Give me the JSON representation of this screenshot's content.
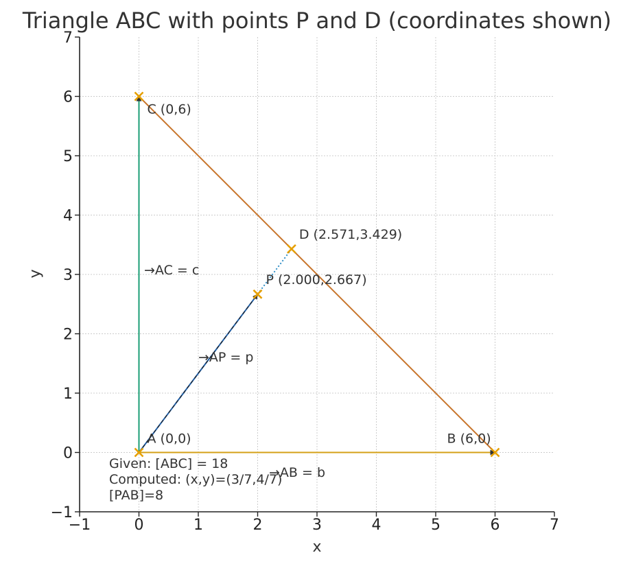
{
  "chart_data": {
    "type": "scatter",
    "title": "Triangle ABC with points P and D (coordinates shown)",
    "xlabel": "x",
    "ylabel": "y",
    "xlim": [
      -1,
      7
    ],
    "ylim": [
      -1,
      7
    ],
    "xticks": [
      -1,
      0,
      1,
      2,
      3,
      4,
      5,
      6,
      7
    ],
    "yticks": [
      -1,
      0,
      1,
      2,
      3,
      4,
      5,
      6,
      7
    ],
    "xtick_labels": [
      "−1",
      "0",
      "1",
      "2",
      "3",
      "4",
      "5",
      "6",
      "7"
    ],
    "ytick_labels": [
      "−1",
      "0",
      "1",
      "2",
      "3",
      "4",
      "5",
      "6",
      "7"
    ],
    "grid": true,
    "colors": {
      "triangle": "#c8742a",
      "side_ab": "#d4a017",
      "side_ac": "#1a9e74",
      "vector_ap": "#1f5fa8",
      "dotted_pd": "#2b8cc4",
      "points": "#e69f00",
      "text": "#333333"
    },
    "points": [
      {
        "name": "A",
        "x": 0,
        "y": 0,
        "label": "A (0,0)"
      },
      {
        "name": "B",
        "x": 6,
        "y": 0,
        "label": "B (6,0)"
      },
      {
        "name": "C",
        "x": 0,
        "y": 6,
        "label": "C (0,6)"
      },
      {
        "name": "P",
        "x": 2.0,
        "y": 2.667,
        "label": "P (2.000,2.667)"
      },
      {
        "name": "D",
        "x": 2.571,
        "y": 3.429,
        "label": "D (2.571,3.429)"
      }
    ],
    "vectors": [
      {
        "from": [
          0,
          0
        ],
        "to": [
          6,
          0
        ],
        "label": "→AB = b"
      },
      {
        "from": [
          0,
          0
        ],
        "to": [
          0,
          6
        ],
        "label": "→AC = c"
      },
      {
        "from": [
          0,
          0
        ],
        "to": [
          2.0,
          2.667
        ],
        "label": "→AP = p"
      }
    ],
    "annotations": [
      "Given: [ABC] = 18",
      "Computed: (x,y)=(3/7,4/7)",
      "[PAB]=8"
    ]
  }
}
